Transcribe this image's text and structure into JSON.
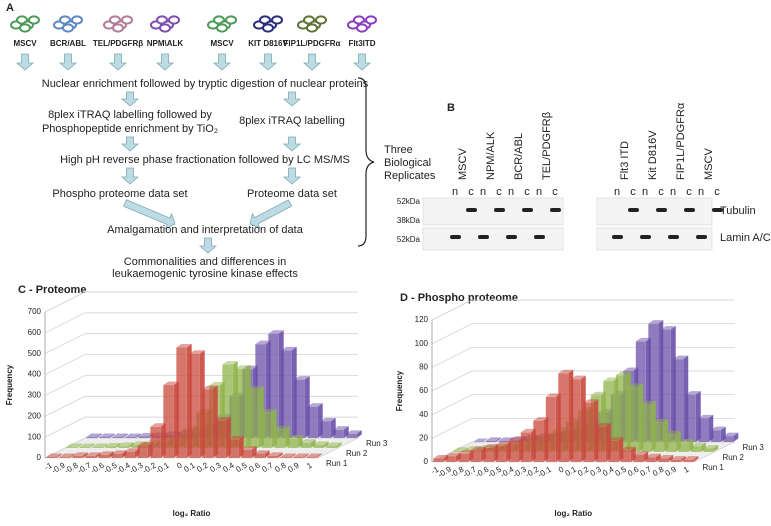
{
  "panel_a": {
    "label": "A",
    "cells": [
      "MSCV",
      "BCR/ABL",
      "TEL/PDGFRβ",
      "NPM\\ALK",
      "MSCV",
      "KIT D816V",
      "FIP1L/PDGFRα",
      "Flt3ITD"
    ],
    "steps": {
      "nuclear": "Nuclear enrichment followed by tryptic digestion of nuclear proteins",
      "phospho_label": [
        "8plex iTRAQ labelling followed by",
        "Phosphopeptide enrichment by TiO₂"
      ],
      "itraq": "8plex  iTRAQ labelling",
      "fractionation": "High pH reverse phase fractionation followed by LC MS/MS",
      "phospho_set": "Phospho proteome data set",
      "proteome_set": "Proteome data set",
      "amalgamation": "Amalgamation and interpretation of data",
      "conclusion": [
        "Commonalities and differences in",
        "leukaemogenic tyrosine kinase effects"
      ]
    },
    "replicates": [
      "Three",
      "Biological",
      "Replicates"
    ]
  },
  "panel_b": {
    "label": "B",
    "lanes_left": [
      "MSCV",
      "NPM/ALK",
      "BCR/ABL",
      "TEL/PDGFRβ"
    ],
    "lanes_right": [
      "Flt3 ITD",
      "Kit D816V",
      "FIP1L/PDGFRα",
      "MSCV"
    ],
    "fraction_labels": [
      "n",
      "c"
    ],
    "markers": [
      "52kDa",
      "38kDa",
      "52kDa"
    ],
    "rows": [
      "Tubulin",
      "Lamin A/C"
    ]
  },
  "chart_data": [
    {
      "type": "bar3d",
      "title": "C - Proteome",
      "y_label": "Frequency",
      "x_label": "log₂ Ratio",
      "categories": [
        "-1",
        "-0.9",
        "-0.8",
        "-0.7",
        "-0.6",
        "-0.5",
        "-0.4",
        "-0.3",
        "-0.2",
        "-0.1",
        "0",
        "0.1",
        "0.2",
        "0.3",
        "0.4",
        "0.5",
        "0.6",
        "0.7",
        "0.8",
        "0.9",
        "1"
      ],
      "series": [
        {
          "name": "Run 1",
          "color": "#c9483c",
          "values": [
            5,
            5,
            10,
            10,
            15,
            20,
            30,
            60,
            150,
            350,
            530,
            500,
            330,
            180,
            90,
            40,
            20,
            10,
            5,
            5,
            5
          ]
        },
        {
          "name": "Run 2",
          "color": "#8fb34a",
          "values": [
            5,
            5,
            5,
            8,
            10,
            15,
            20,
            30,
            50,
            90,
            170,
            300,
            400,
            380,
            280,
            170,
            90,
            45,
            25,
            15,
            10
          ]
        },
        {
          "name": "Run 3",
          "color": "#6a4fa8",
          "values": [
            5,
            5,
            5,
            5,
            8,
            10,
            15,
            20,
            30,
            50,
            100,
            200,
            330,
            450,
            500,
            420,
            280,
            150,
            80,
            40,
            20
          ]
        }
      ],
      "ylim": [
        0,
        700
      ],
      "yticks": [
        0,
        100,
        200,
        300,
        400,
        500,
        600,
        700
      ],
      "grid": true
    },
    {
      "type": "bar3d",
      "title": "D - Phospho proteome",
      "y_label": "Frequency",
      "x_label": "log₂ Ratio",
      "categories": [
        "-1",
        "-0.9",
        "-0.8",
        "-0.7",
        "-0.6",
        "-0.5",
        "-0.4",
        "-0.3",
        "-0.2",
        "-0.1",
        "0",
        "0.1",
        "0.2",
        "0.3",
        "0.4",
        "0.5",
        "0.6",
        "0.7",
        "0.8",
        "0.9",
        "1"
      ],
      "series": [
        {
          "name": "Run 1",
          "color": "#c9483c",
          "values": [
            3,
            5,
            7,
            10,
            12,
            14,
            18,
            25,
            35,
            55,
            75,
            70,
            50,
            30,
            18,
            10,
            6,
            4,
            3,
            2,
            2
          ]
        },
        {
          "name": "Run 2",
          "color": "#8fb34a",
          "values": [
            1,
            2,
            3,
            4,
            5,
            7,
            10,
            13,
            18,
            25,
            35,
            48,
            60,
            65,
            55,
            40,
            25,
            15,
            8,
            5,
            3
          ]
        },
        {
          "name": "Run 3",
          "color": "#6a4fa8",
          "values": [
            0,
            1,
            1,
            2,
            3,
            4,
            5,
            7,
            10,
            15,
            25,
            40,
            60,
            85,
            100,
            95,
            70,
            40,
            20,
            10,
            5
          ]
        }
      ],
      "ylim": [
        0,
        120
      ],
      "yticks": [
        0,
        20,
        40,
        60,
        80,
        100,
        120
      ],
      "grid": true
    }
  ]
}
